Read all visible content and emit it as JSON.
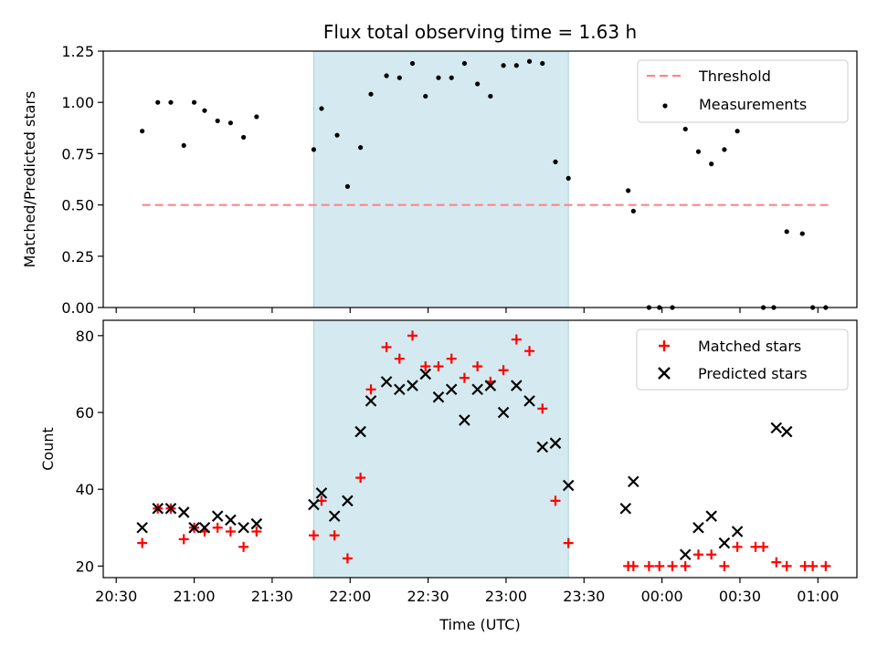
{
  "chart_data": [
    {
      "type": "scatter",
      "title": "Flux total observing time = 1.63 h",
      "ylabel": "Matched/Predicted stars",
      "xlabel": "",
      "ylim": [
        0,
        1.25
      ],
      "yticks": [
        "0.00",
        "0.25",
        "0.50",
        "0.75",
        "1.00",
        "1.25"
      ],
      "xlim": [
        "20:25",
        "01:15"
      ],
      "shaded_interval": [
        "21:46",
        "23:24"
      ],
      "shade_color": "#d4eaf0",
      "legend_position": "top-right",
      "series": [
        {
          "name": "Threshold",
          "style": "dashed-line",
          "color": "#ff7f7f",
          "x": [
            "20:40",
            "01:05"
          ],
          "y": [
            0.5,
            0.5
          ]
        },
        {
          "name": "Measurements",
          "style": "dot",
          "color": "#000000",
          "x": [
            "20:40",
            "20:46",
            "20:51",
            "20:56",
            "21:00",
            "21:04",
            "21:09",
            "21:14",
            "21:19",
            "21:24",
            "21:46",
            "21:49",
            "21:55",
            "21:59",
            "22:04",
            "22:08",
            "22:14",
            "22:19",
            "22:24",
            "22:29",
            "22:34",
            "22:39",
            "22:44",
            "22:49",
            "22:54",
            "22:59",
            "23:04",
            "23:09",
            "23:14",
            "23:19",
            "23:24",
            "23:47",
            "23:49",
            "23:55",
            "23:59",
            "00:04",
            "00:09",
            "00:14",
            "00:19",
            "00:24",
            "00:29",
            "00:39",
            "00:43",
            "00:48",
            "00:54",
            "00:58",
            "01:03"
          ],
          "y": [
            0.86,
            1.0,
            1.0,
            0.79,
            1.0,
            0.96,
            0.91,
            0.9,
            0.83,
            0.93,
            0.77,
            0.97,
            0.84,
            0.59,
            0.78,
            1.04,
            1.13,
            1.12,
            1.19,
            1.03,
            1.12,
            1.12,
            1.19,
            1.09,
            1.03,
            1.18,
            1.18,
            1.2,
            1.19,
            0.71,
            0.63,
            0.57,
            0.47,
            0.0,
            0.0,
            0.0,
            0.87,
            0.76,
            0.7,
            0.77,
            0.86,
            0.0,
            0.0,
            0.37,
            0.36,
            0.0,
            0.0
          ]
        }
      ]
    },
    {
      "type": "scatter",
      "title": "",
      "ylabel": "Count",
      "xlabel": "Time (UTC)",
      "ylim": [
        17,
        84
      ],
      "yticks": [
        "20",
        "40",
        "60",
        "80"
      ],
      "xlim": [
        "20:25",
        "01:15"
      ],
      "xticks": [
        "20:30",
        "21:00",
        "21:30",
        "22:00",
        "22:30",
        "23:00",
        "23:30",
        "00:00",
        "00:30",
        "01:00"
      ],
      "shaded_interval": [
        "21:46",
        "23:24"
      ],
      "shade_color": "#d4eaf0",
      "legend_position": "top-right",
      "series": [
        {
          "name": "Matched stars",
          "style": "plus",
          "color": "#ff0000",
          "x": [
            "20:40",
            "20:46",
            "20:51",
            "20:56",
            "21:00",
            "21:04",
            "21:09",
            "21:14",
            "21:19",
            "21:24",
            "21:46",
            "21:49",
            "21:54",
            "21:59",
            "22:04",
            "22:08",
            "22:14",
            "22:19",
            "22:24",
            "22:29",
            "22:34",
            "22:39",
            "22:44",
            "22:49",
            "22:54",
            "22:59",
            "23:04",
            "23:09",
            "23:14",
            "23:19",
            "23:24",
            "23:47",
            "23:49",
            "23:55",
            "23:59",
            "00:04",
            "00:09",
            "00:14",
            "00:19",
            "00:24",
            "00:29",
            "00:36",
            "00:39",
            "00:44",
            "00:48",
            "00:55",
            "00:58",
            "01:03"
          ],
          "y": [
            26,
            35,
            35,
            27,
            30,
            29,
            30,
            29,
            25,
            29,
            28,
            37,
            28,
            22,
            43,
            66,
            77,
            74,
            80,
            72,
            72,
            74,
            69,
            72,
            68,
            71,
            79,
            76,
            61,
            37,
            26,
            20,
            20,
            20,
            20,
            20,
            20,
            23,
            23,
            20,
            25,
            25,
            25,
            21,
            20,
            20,
            20,
            20
          ]
        },
        {
          "name": "Predicted stars",
          "style": "x",
          "color": "#000000",
          "x": [
            "20:40",
            "20:46",
            "20:51",
            "20:56",
            "21:00",
            "21:04",
            "21:09",
            "21:14",
            "21:19",
            "21:24",
            "21:46",
            "21:49",
            "21:54",
            "21:59",
            "22:04",
            "22:08",
            "22:14",
            "22:19",
            "22:24",
            "22:29",
            "22:34",
            "22:39",
            "22:44",
            "22:49",
            "22:54",
            "22:59",
            "23:04",
            "23:09",
            "23:14",
            "23:19",
            "23:24",
            "23:46",
            "23:49",
            "00:09",
            "00:14",
            "00:19",
            "00:24",
            "00:29",
            "00:44",
            "00:48"
          ],
          "y": [
            30,
            35,
            35,
            34,
            30,
            30,
            33,
            32,
            30,
            31,
            36,
            39,
            33,
            37,
            55,
            63,
            68,
            66,
            67,
            70,
            64,
            66,
            58,
            66,
            67,
            60,
            67,
            63,
            51,
            52,
            41,
            35,
            42,
            23,
            30,
            33,
            26,
            29,
            56,
            55
          ]
        }
      ]
    }
  ]
}
